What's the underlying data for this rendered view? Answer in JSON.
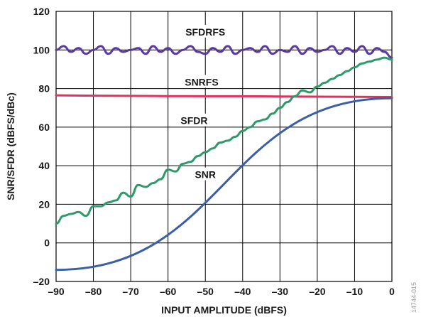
{
  "chart_data": {
    "type": "line",
    "xlabel": "INPUT AMPLITUDE (dBFS)",
    "ylabel": "SNR/SFDR (dBFS/dBc)",
    "xlim": [
      -90,
      0
    ],
    "ylim": [
      -20,
      120
    ],
    "xticks": [
      -90,
      -80,
      -70,
      -60,
      -50,
      -40,
      -30,
      -20,
      -10,
      0
    ],
    "xtick_labels": [
      "–90",
      "–80",
      "–70",
      "–60",
      "–50",
      "–40",
      "–30",
      "–20",
      "–10",
      "0"
    ],
    "yticks": [
      -20,
      0,
      20,
      40,
      60,
      80,
      100,
      120
    ],
    "ytick_labels": [
      "–20",
      "0",
      "20",
      "40",
      "60",
      "80",
      "100",
      "120"
    ],
    "grid": true,
    "legend": "none",
    "series": [
      {
        "name": "SFDRFS",
        "color": "#5b3a9e",
        "x": [
          -90,
          -88,
          -86,
          -84,
          -82,
          -80,
          -78,
          -76,
          -74,
          -72,
          -70,
          -68,
          -66,
          -64,
          -62,
          -60,
          -58,
          -56,
          -54,
          -52,
          -50,
          -48,
          -46,
          -44,
          -42,
          -40,
          -38,
          -36,
          -34,
          -32,
          -30,
          -28,
          -26,
          -24,
          -22,
          -20,
          -18,
          -16,
          -14,
          -12,
          -10,
          -8,
          -6,
          -4,
          -2,
          0
        ],
        "y": [
          100,
          102,
          99,
          101,
          98,
          100,
          102,
          98,
          101,
          99,
          100,
          101,
          98,
          102,
          99,
          101,
          98,
          100,
          102,
          99,
          98,
          101,
          99,
          102,
          98,
          100,
          101,
          99,
          102,
          98,
          100,
          99,
          102,
          98,
          101,
          99,
          100,
          102,
          98,
          101,
          99,
          102,
          98,
          101,
          99,
          96
        ]
      },
      {
        "name": "SNRFS",
        "color": "#e0325a",
        "x": [
          -90,
          -80,
          -70,
          -60,
          -50,
          -40,
          -30,
          -20,
          -10,
          0
        ],
        "y": [
          76.5,
          76.3,
          76.2,
          76.1,
          76.0,
          76.0,
          75.9,
          75.8,
          75.7,
          75.6
        ]
      },
      {
        "name": "SFDR",
        "color": "#2e9a6a",
        "x": [
          -90,
          -88,
          -86,
          -84,
          -82,
          -80,
          -78,
          -76,
          -74,
          -72,
          -70,
          -68,
          -66,
          -64,
          -62,
          -60,
          -58,
          -56,
          -54,
          -52,
          -50,
          -48,
          -46,
          -44,
          -42,
          -40,
          -38,
          -36,
          -34,
          -32,
          -30,
          -28,
          -26,
          -24,
          -22,
          -20,
          -18,
          -16,
          -14,
          -12,
          -10,
          -8,
          -6,
          -4,
          -2,
          0
        ],
        "y": [
          10,
          14,
          15,
          16,
          14,
          19,
          19,
          21,
          22,
          26,
          24,
          30,
          29,
          31,
          33,
          38,
          37,
          41,
          42,
          45,
          47,
          49,
          52,
          53,
          55,
          58,
          60,
          63,
          64,
          67,
          70,
          73,
          76,
          79,
          78,
          81,
          83,
          85,
          87,
          89,
          91,
          93,
          94,
          95,
          96,
          95
        ]
      },
      {
        "name": "SNR",
        "color": "#3a5ea8",
        "x": [
          -90,
          0
        ],
        "y": [
          -14,
          75
        ]
      }
    ],
    "annotations": [
      {
        "text": "SFDRFS",
        "x": -50,
        "y": 109
      },
      {
        "text": "SNRFS",
        "x": -51,
        "y": 83
      },
      {
        "text": "SFDR",
        "x": -53,
        "y": 63
      },
      {
        "text": "SNR",
        "x": -50,
        "y": 35
      }
    ],
    "figure_id": "14744-015"
  }
}
